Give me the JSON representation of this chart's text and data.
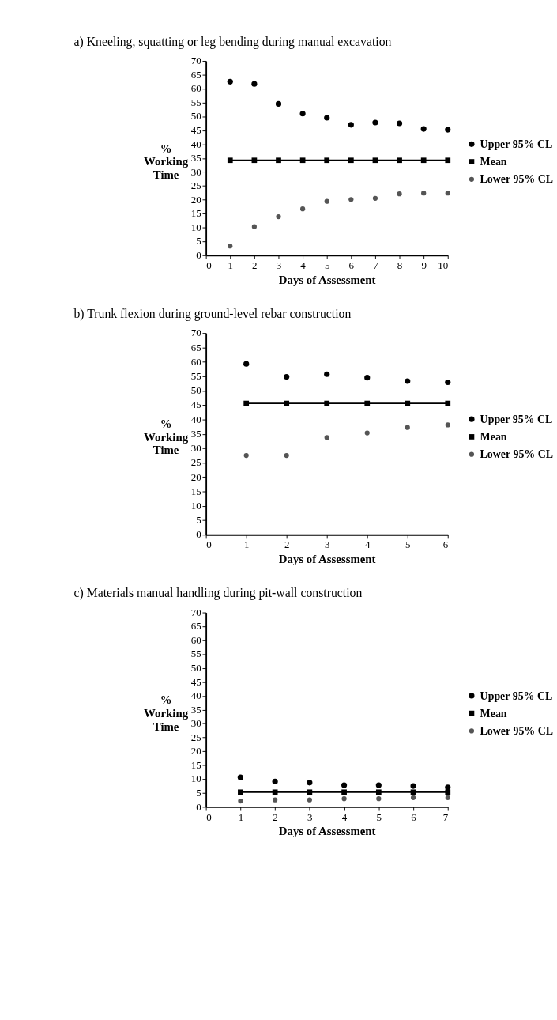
{
  "chart_data": [
    {
      "type": "scatter",
      "title": "a) Kneeling, squatting or leg bending during manual excavation",
      "xlabel": "Days of Assessment",
      "ylabel": "% Working Time",
      "x": [
        1,
        2,
        3,
        4,
        5,
        6,
        7,
        8,
        9,
        10
      ],
      "xlim": [
        0,
        10
      ],
      "xticks": [
        0,
        1,
        2,
        3,
        4,
        5,
        6,
        7,
        8,
        9,
        10
      ],
      "ylim": [
        0,
        70
      ],
      "yticks": [
        0,
        5,
        10,
        15,
        20,
        25,
        30,
        35,
        40,
        45,
        50,
        55,
        60,
        65,
        70
      ],
      "legend": "right",
      "series": [
        {
          "name": "Upper 95% CL",
          "color": "#000000",
          "marker": "circle",
          "values": [
            62.5,
            61.7,
            54.5,
            51.0,
            49.5,
            47.0,
            47.8,
            47.5,
            45.5,
            45.2
          ]
        },
        {
          "name": "Mean",
          "type": "line",
          "color": "#000000",
          "marker": "square",
          "values": [
            34.2,
            34.2,
            34.2,
            34.2,
            34.2,
            34.2,
            34.2,
            34.2,
            34.2,
            34.2
          ]
        },
        {
          "name": "Lower 95% CL",
          "color": "#555555",
          "marker": "circle",
          "values": [
            3.3,
            10.3,
            13.9,
            16.7,
            19.4,
            20.1,
            20.5,
            22.1,
            22.4,
            22.4
          ]
        }
      ]
    },
    {
      "type": "scatter",
      "title": "b) Trunk flexion during ground-level rebar construction",
      "xlabel": "Days of Assessment",
      "ylabel": "% Working Time",
      "x": [
        1,
        2,
        3,
        4,
        5,
        6
      ],
      "xlim": [
        0,
        6
      ],
      "xticks": [
        0,
        1,
        2,
        3,
        4,
        5,
        6
      ],
      "ylim": [
        0,
        70
      ],
      "yticks": [
        0,
        5,
        10,
        15,
        20,
        25,
        30,
        35,
        40,
        45,
        50,
        55,
        60,
        65,
        70
      ],
      "legend": "right",
      "series": [
        {
          "name": "Upper 95% CL",
          "color": "#000000",
          "marker": "circle",
          "values": [
            59.3,
            54.8,
            55.7,
            54.5,
            53.3,
            52.9
          ]
        },
        {
          "name": "Mean",
          "type": "line",
          "color": "#000000",
          "marker": "square",
          "values": [
            45.6,
            45.6,
            45.6,
            45.6,
            45.6,
            45.6
          ]
        },
        {
          "name": "Lower 95% CL",
          "color": "#555555",
          "marker": "circle",
          "values": [
            27.5,
            27.5,
            33.7,
            35.3,
            37.2,
            38.1
          ]
        }
      ]
    },
    {
      "type": "scatter",
      "title": "c) Materials manual handling during pit-wall construction",
      "xlabel": "Days of Assessment",
      "ylabel": "% Working Time",
      "x": [
        1,
        2,
        3,
        4,
        5,
        6,
        7
      ],
      "xlim": [
        0,
        7
      ],
      "xticks": [
        0,
        1,
        2,
        3,
        4,
        5,
        6,
        7
      ],
      "ylim": [
        0,
        70
      ],
      "yticks": [
        0,
        5,
        10,
        15,
        20,
        25,
        30,
        35,
        40,
        45,
        50,
        55,
        60,
        65,
        70
      ],
      "legend": "right",
      "series": [
        {
          "name": "Upper 95% CL",
          "color": "#000000",
          "marker": "circle",
          "values": [
            10.6,
            9.1,
            8.7,
            7.8,
            7.8,
            7.5,
            7.0
          ]
        },
        {
          "name": "Mean",
          "type": "line",
          "color": "#000000",
          "marker": "square",
          "values": [
            5.3,
            5.3,
            5.3,
            5.3,
            5.3,
            5.3,
            5.3
          ]
        },
        {
          "name": "Lower 95% CL",
          "color": "#555555",
          "marker": "circle",
          "values": [
            2.1,
            2.5,
            2.5,
            2.9,
            2.9,
            3.3,
            3.3
          ]
        }
      ]
    }
  ]
}
